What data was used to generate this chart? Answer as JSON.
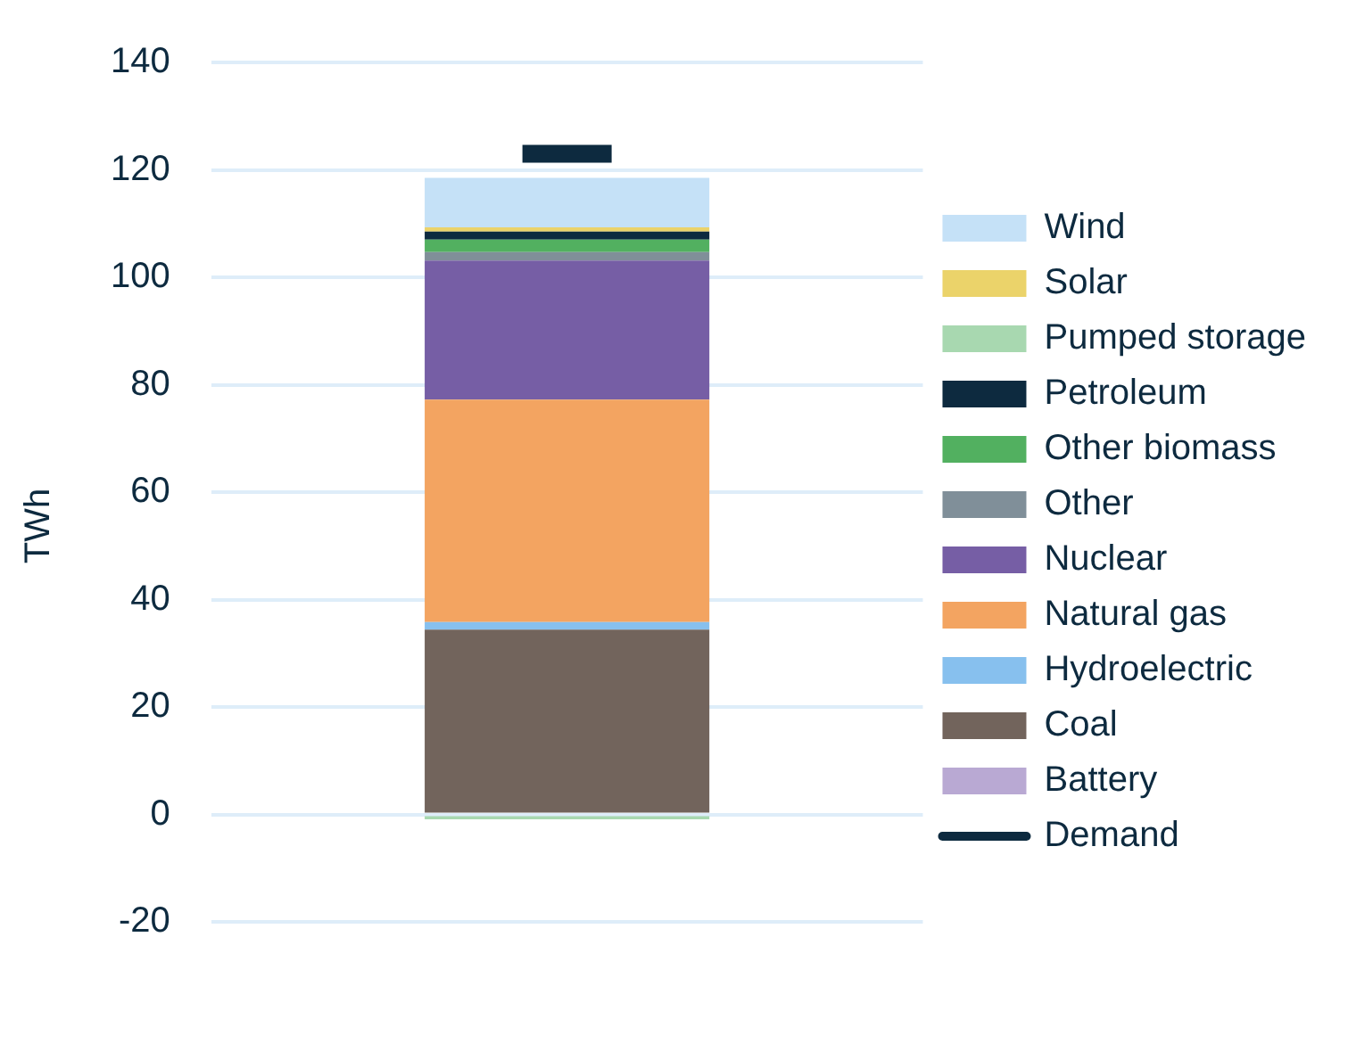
{
  "chart_data": {
    "type": "bar",
    "ylabel": "TWh",
    "categories": [
      null
    ],
    "stacked": true,
    "series": [
      {
        "name": "Battery",
        "color": "#b9a9d3",
        "values": [
          0
        ]
      },
      {
        "name": "Coal",
        "color": "#72645c",
        "values": [
          34.4
        ]
      },
      {
        "name": "Hydroelectric",
        "color": "#87c0ee",
        "values": [
          1.4
        ]
      },
      {
        "name": "Natural gas",
        "color": "#f3a461",
        "values": [
          41.4
        ]
      },
      {
        "name": "Nuclear",
        "color": "#765ea5",
        "values": [
          25.9
        ]
      },
      {
        "name": "Other",
        "color": "#808f99",
        "values": [
          1.6
        ]
      },
      {
        "name": "Other biomass",
        "color": "#52b060",
        "values": [
          2.3
        ]
      },
      {
        "name": "Petroleum",
        "color": "#0d2a3f",
        "values": [
          1.5
        ]
      },
      {
        "name": "Pumped storage",
        "color": "#a8d8b0",
        "values": [
          -0.9
        ]
      },
      {
        "name": "Solar",
        "color": "#ebd36a",
        "values": [
          0.8
        ]
      },
      {
        "name": "Wind",
        "color": "#c5e1f7",
        "values": [
          9.2
        ]
      }
    ],
    "ref_lines": [
      {
        "axis": "y",
        "value": 123,
        "label": "Demand",
        "color": "#0d2a3f"
      }
    ],
    "ylim": [
      -20,
      140
    ],
    "yticks": [
      -20,
      0,
      20,
      40,
      60,
      80,
      100,
      120,
      140
    ],
    "grid": "y",
    "legend": "right",
    "tick_labels": "y"
  }
}
